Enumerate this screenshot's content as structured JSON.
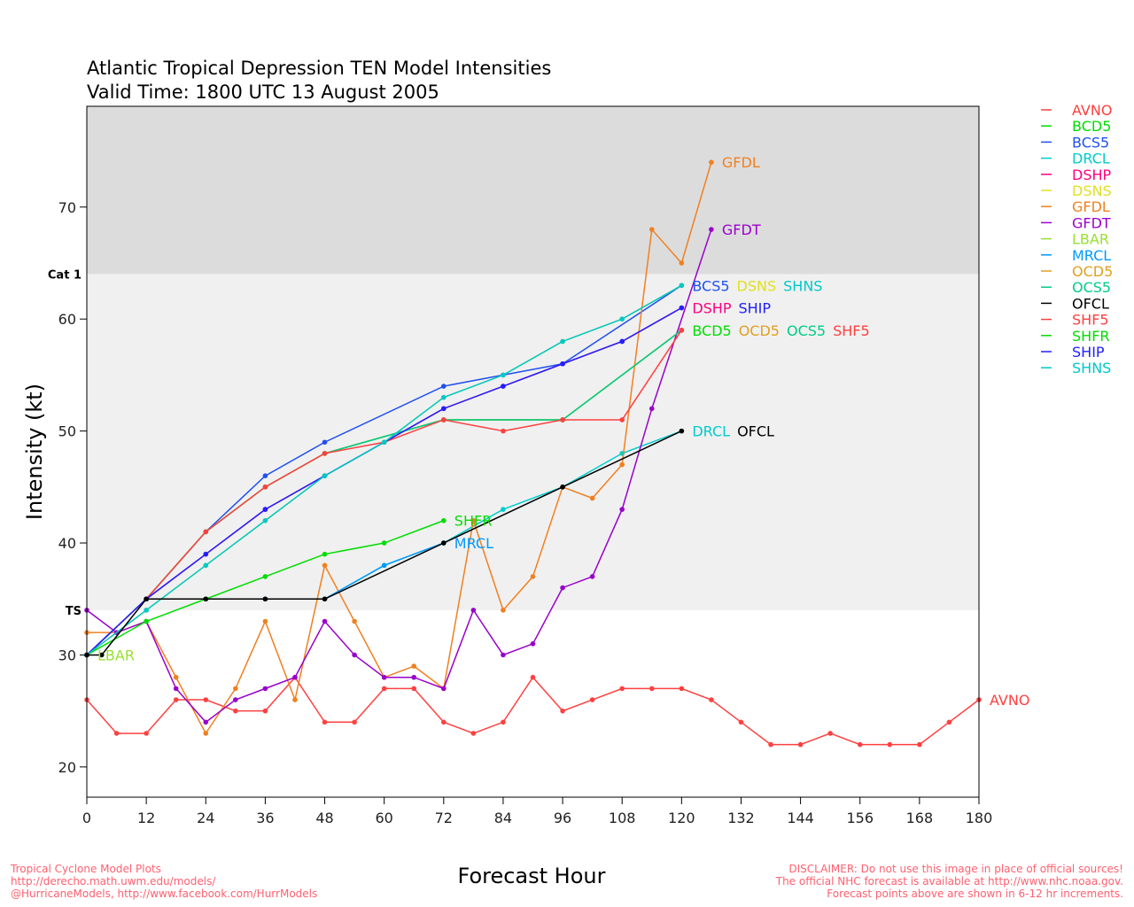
{
  "chart_data": {
    "type": "line",
    "title": "Atlantic Tropical Depression TEN Model Intensities",
    "subtitle": "Valid Time: 1800 UTC 13 August 2005",
    "xlabel": "Forecast Hour",
    "ylabel": "Intensity (kt)",
    "xlim": [
      0,
      180
    ],
    "ylim": [
      17.3,
      79
    ],
    "xticks": [
      0,
      12,
      24,
      36,
      48,
      60,
      72,
      84,
      96,
      108,
      120,
      132,
      144,
      156,
      168,
      180
    ],
    "yticks": [
      20,
      30,
      40,
      50,
      60,
      70
    ],
    "bands": [
      {
        "label": "Cat 1",
        "from": 64,
        "to": 79,
        "color": "#dcdcdc"
      },
      {
        "label": "TS",
        "from": 34,
        "to": 64,
        "color": "#f0f0f0"
      }
    ],
    "legend_position": "right",
    "series": [
      {
        "name": "AVNO",
        "color": "#ff4040",
        "points": [
          [
            0,
            26
          ],
          [
            6,
            23
          ],
          [
            12,
            23
          ],
          [
            18,
            26
          ],
          [
            24,
            26
          ],
          [
            30,
            25
          ],
          [
            36,
            25
          ],
          [
            42,
            28
          ],
          [
            48,
            24
          ],
          [
            54,
            24
          ],
          [
            60,
            27
          ],
          [
            66,
            27
          ],
          [
            72,
            24
          ],
          [
            78,
            23
          ],
          [
            84,
            24
          ],
          [
            90,
            28
          ],
          [
            96,
            25
          ],
          [
            102,
            26
          ],
          [
            108,
            27
          ],
          [
            114,
            27
          ],
          [
            120,
            27
          ],
          [
            126,
            26
          ],
          [
            132,
            24
          ],
          [
            138,
            22
          ],
          [
            144,
            22
          ],
          [
            150,
            23
          ],
          [
            156,
            22
          ],
          [
            162,
            22
          ],
          [
            168,
            22
          ],
          [
            174,
            24
          ],
          [
            180,
            26
          ]
        ]
      },
      {
        "name": "BCD5",
        "color": "#00dd00",
        "points": [
          [
            0,
            30
          ],
          [
            12,
            35
          ],
          [
            24,
            41
          ],
          [
            36,
            45
          ],
          [
            48,
            48
          ],
          [
            72,
            51
          ],
          [
            96,
            51
          ],
          [
            120,
            59
          ]
        ]
      },
      {
        "name": "BCS5",
        "color": "#2050f0",
        "points": [
          [
            0,
            30
          ],
          [
            12,
            35
          ],
          [
            24,
            41
          ],
          [
            36,
            46
          ],
          [
            48,
            49
          ],
          [
            72,
            54
          ],
          [
            84,
            55
          ],
          [
            96,
            56
          ],
          [
            120,
            63
          ]
        ]
      },
      {
        "name": "DRCL",
        "color": "#00cccc",
        "points": [
          [
            0,
            30
          ],
          [
            12,
            35
          ],
          [
            24,
            35
          ],
          [
            36,
            35
          ],
          [
            48,
            35
          ],
          [
            60,
            38
          ],
          [
            72,
            40
          ],
          [
            84,
            43
          ],
          [
            96,
            45
          ],
          [
            108,
            48
          ],
          [
            120,
            50
          ]
        ]
      },
      {
        "name": "DSHP",
        "color": "#ff0080",
        "points": [
          [
            0,
            30
          ],
          [
            12,
            35
          ],
          [
            24,
            39
          ],
          [
            36,
            43
          ],
          [
            48,
            46
          ],
          [
            72,
            52
          ],
          [
            84,
            54
          ],
          [
            96,
            56
          ],
          [
            108,
            58
          ],
          [
            120,
            61
          ]
        ]
      },
      {
        "name": "DSNS",
        "color": "#e0e020",
        "points": [
          [
            0,
            30
          ],
          [
            12,
            34
          ],
          [
            24,
            38
          ],
          [
            36,
            42
          ],
          [
            48,
            46
          ],
          [
            60,
            49
          ],
          [
            72,
            53
          ],
          [
            84,
            55
          ],
          [
            96,
            58
          ],
          [
            108,
            60
          ],
          [
            120,
            63
          ]
        ]
      },
      {
        "name": "GFDL",
        "color": "#f08020",
        "points": [
          [
            0,
            32
          ],
          [
            6,
            32
          ],
          [
            12,
            33
          ],
          [
            18,
            28
          ],
          [
            24,
            23
          ],
          [
            30,
            27
          ],
          [
            36,
            33
          ],
          [
            42,
            26
          ],
          [
            48,
            38
          ],
          [
            54,
            33
          ],
          [
            60,
            28
          ],
          [
            66,
            29
          ],
          [
            72,
            27
          ],
          [
            78,
            42
          ],
          [
            84,
            34
          ],
          [
            90,
            37
          ],
          [
            96,
            45
          ],
          [
            102,
            44
          ],
          [
            108,
            47
          ],
          [
            114,
            68
          ],
          [
            120,
            65
          ],
          [
            126,
            74
          ]
        ]
      },
      {
        "name": "GFDT",
        "color": "#9900cc",
        "points": [
          [
            0,
            34
          ],
          [
            6,
            32
          ],
          [
            12,
            33
          ],
          [
            18,
            27
          ],
          [
            24,
            24
          ],
          [
            30,
            26
          ],
          [
            36,
            27
          ],
          [
            42,
            28
          ],
          [
            48,
            33
          ],
          [
            54,
            30
          ],
          [
            60,
            28
          ],
          [
            66,
            28
          ],
          [
            72,
            27
          ],
          [
            78,
            34
          ],
          [
            84,
            30
          ],
          [
            90,
            31
          ],
          [
            96,
            36
          ],
          [
            102,
            37
          ],
          [
            108,
            43
          ],
          [
            114,
            52
          ],
          [
            126,
            68
          ]
        ]
      },
      {
        "name": "LBAR",
        "color": "#99e030",
        "points": [
          [
            0,
            30
          ]
        ]
      },
      {
        "name": "MRCL",
        "color": "#0099ff",
        "points": [
          [
            0,
            30
          ],
          [
            12,
            35
          ],
          [
            24,
            35
          ],
          [
            36,
            35
          ],
          [
            48,
            35
          ],
          [
            60,
            38
          ],
          [
            72,
            40
          ]
        ]
      },
      {
        "name": "OCD5",
        "color": "#e0a020",
        "points": [
          [
            0,
            30
          ],
          [
            12,
            35
          ],
          [
            24,
            41
          ],
          [
            36,
            45
          ],
          [
            48,
            48
          ],
          [
            72,
            51
          ],
          [
            96,
            51
          ],
          [
            120,
            59
          ]
        ]
      },
      {
        "name": "OCS5",
        "color": "#00cc88",
        "points": [
          [
            0,
            30
          ],
          [
            12,
            35
          ],
          [
            24,
            41
          ],
          [
            36,
            45
          ],
          [
            48,
            48
          ],
          [
            72,
            51
          ],
          [
            96,
            51
          ],
          [
            120,
            59
          ]
        ]
      },
      {
        "name": "SHF5",
        "color": "#ff4040",
        "points": [
          [
            0,
            30
          ],
          [
            12,
            35
          ],
          [
            24,
            41
          ],
          [
            36,
            45
          ],
          [
            48,
            48
          ],
          [
            60,
            49
          ],
          [
            72,
            51
          ],
          [
            84,
            50
          ],
          [
            96,
            51
          ],
          [
            108,
            51
          ],
          [
            120,
            59
          ]
        ]
      },
      {
        "name": "SHFR",
        "color": "#00dd00",
        "points": [
          [
            0,
            30
          ],
          [
            12,
            33
          ],
          [
            24,
            35
          ],
          [
            36,
            37
          ],
          [
            48,
            39
          ],
          [
            60,
            40
          ],
          [
            72,
            42
          ]
        ]
      },
      {
        "name": "SHIP",
        "color": "#2020ff",
        "points": [
          [
            0,
            30
          ],
          [
            12,
            35
          ],
          [
            24,
            39
          ],
          [
            36,
            43
          ],
          [
            48,
            46
          ],
          [
            72,
            52
          ],
          [
            84,
            54
          ],
          [
            96,
            56
          ],
          [
            108,
            58
          ],
          [
            120,
            61
          ]
        ]
      },
      {
        "name": "SHNS",
        "color": "#00c8c8",
        "points": [
          [
            0,
            30
          ],
          [
            12,
            34
          ],
          [
            24,
            38
          ],
          [
            36,
            42
          ],
          [
            48,
            46
          ],
          [
            60,
            49
          ],
          [
            72,
            53
          ],
          [
            84,
            55
          ],
          [
            96,
            58
          ],
          [
            108,
            60
          ],
          [
            120,
            63
          ]
        ]
      },
      {
        "name": "OFCL",
        "color": "#000000",
        "points": [
          [
            0,
            30
          ],
          [
            3,
            30
          ],
          [
            12,
            35
          ],
          [
            24,
            35
          ],
          [
            36,
            35
          ],
          [
            48,
            35
          ],
          [
            72,
            40
          ],
          [
            96,
            45
          ],
          [
            120,
            50
          ]
        ]
      }
    ]
  },
  "footer": {
    "left": [
      "Tropical Cyclone Model Plots",
      "http://derecho.math.uwm.edu/models/",
      "@HurricaneModels, http://www.facebook.com/HurrModels"
    ],
    "right": [
      "DISCLAIMER: Do not use this image in place of official sources!",
      "The official NHC forecast is available at http://www.nhc.noaa.gov.",
      "Forecast points above are shown in 6-12 hr increments."
    ]
  }
}
